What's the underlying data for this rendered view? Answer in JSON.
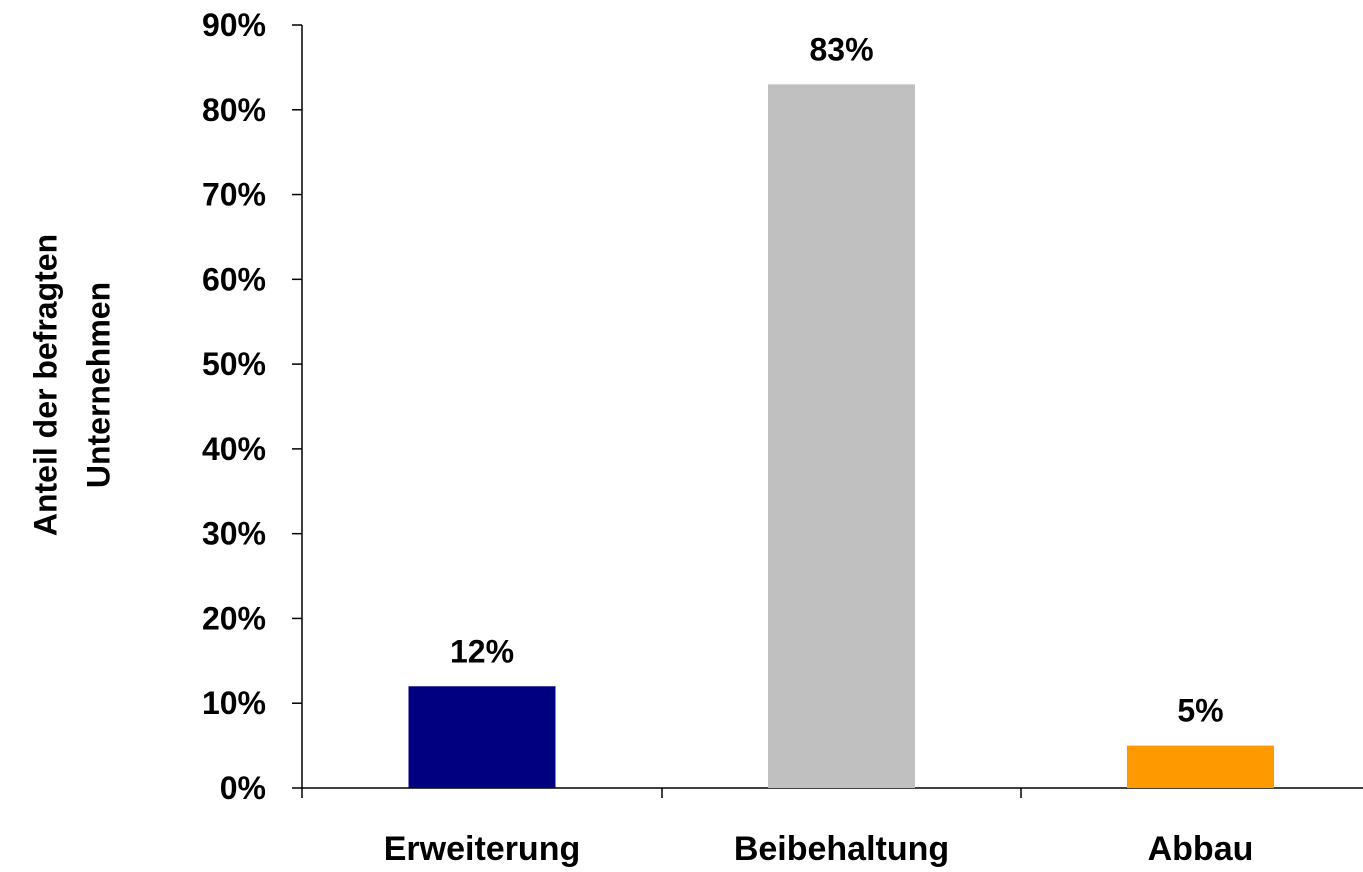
{
  "chart_data": {
    "type": "bar",
    "title": "",
    "xlabel": "",
    "ylabel_lines": [
      "Anteil der befragten",
      "Unternehmen"
    ],
    "categories": [
      "Erweiterung",
      "Beibehaltung",
      "Abbau"
    ],
    "values": [
      12,
      83,
      5
    ],
    "data_labels": [
      "12%",
      "83%",
      "5%"
    ],
    "bar_colors": [
      "#000080",
      "#c0c0c0",
      "#ff9900"
    ],
    "ylim": [
      0,
      90
    ],
    "yticks": [
      0,
      10,
      20,
      30,
      40,
      50,
      60,
      70,
      80,
      90
    ],
    "ytick_labels": [
      "0%",
      "10%",
      "20%",
      "30%",
      "40%",
      "50%",
      "60%",
      "70%",
      "80%",
      "90%"
    ],
    "grid": false,
    "legend": "none"
  }
}
